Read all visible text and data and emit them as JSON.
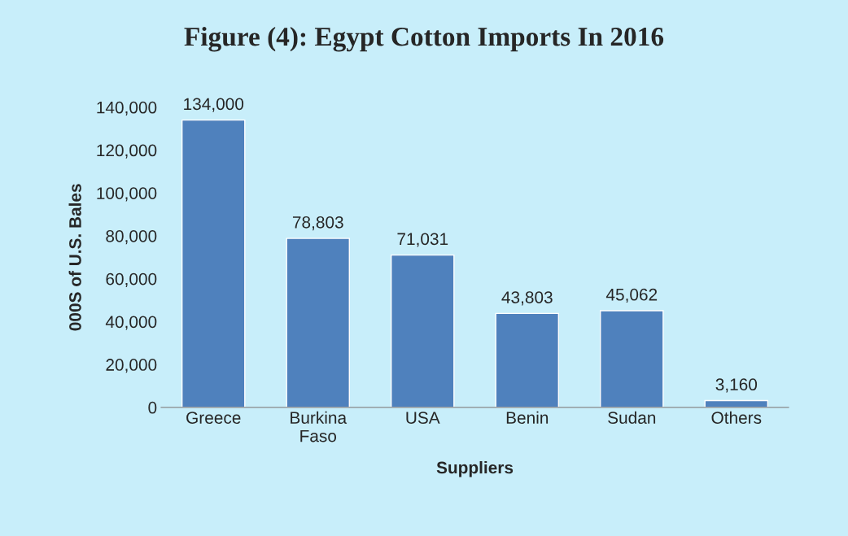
{
  "chart_data": {
    "type": "bar",
    "title": "Figure (4): Egypt Cotton Imports In 2016",
    "xlabel": "Suppliers",
    "ylabel": "000S of U.S. Bales",
    "categories": [
      "Greece",
      "Burkina\nFaso",
      "USA",
      "Benin",
      "Sudan",
      "Others"
    ],
    "values": [
      134000,
      78803,
      71031,
      43803,
      45062,
      3160
    ],
    "value_labels": [
      "134,000",
      "78,803",
      "71,031",
      "43,803",
      "45,062",
      "3,160"
    ],
    "color": "#4f81bd",
    "ylim": [
      0,
      140000
    ],
    "yticks": [
      {
        "value": 0,
        "label": "0"
      },
      {
        "value": 20000,
        "label": "20,000"
      },
      {
        "value": 40000,
        "label": "40,000"
      },
      {
        "value": 60000,
        "label": "60,000"
      },
      {
        "value": 80000,
        "label": "80,000"
      },
      {
        "value": 100000,
        "label": "100,000"
      },
      {
        "value": 120000,
        "label": "120,000"
      },
      {
        "value": 140000,
        "label": "140,000"
      }
    ],
    "grid": false,
    "legend": false
  }
}
